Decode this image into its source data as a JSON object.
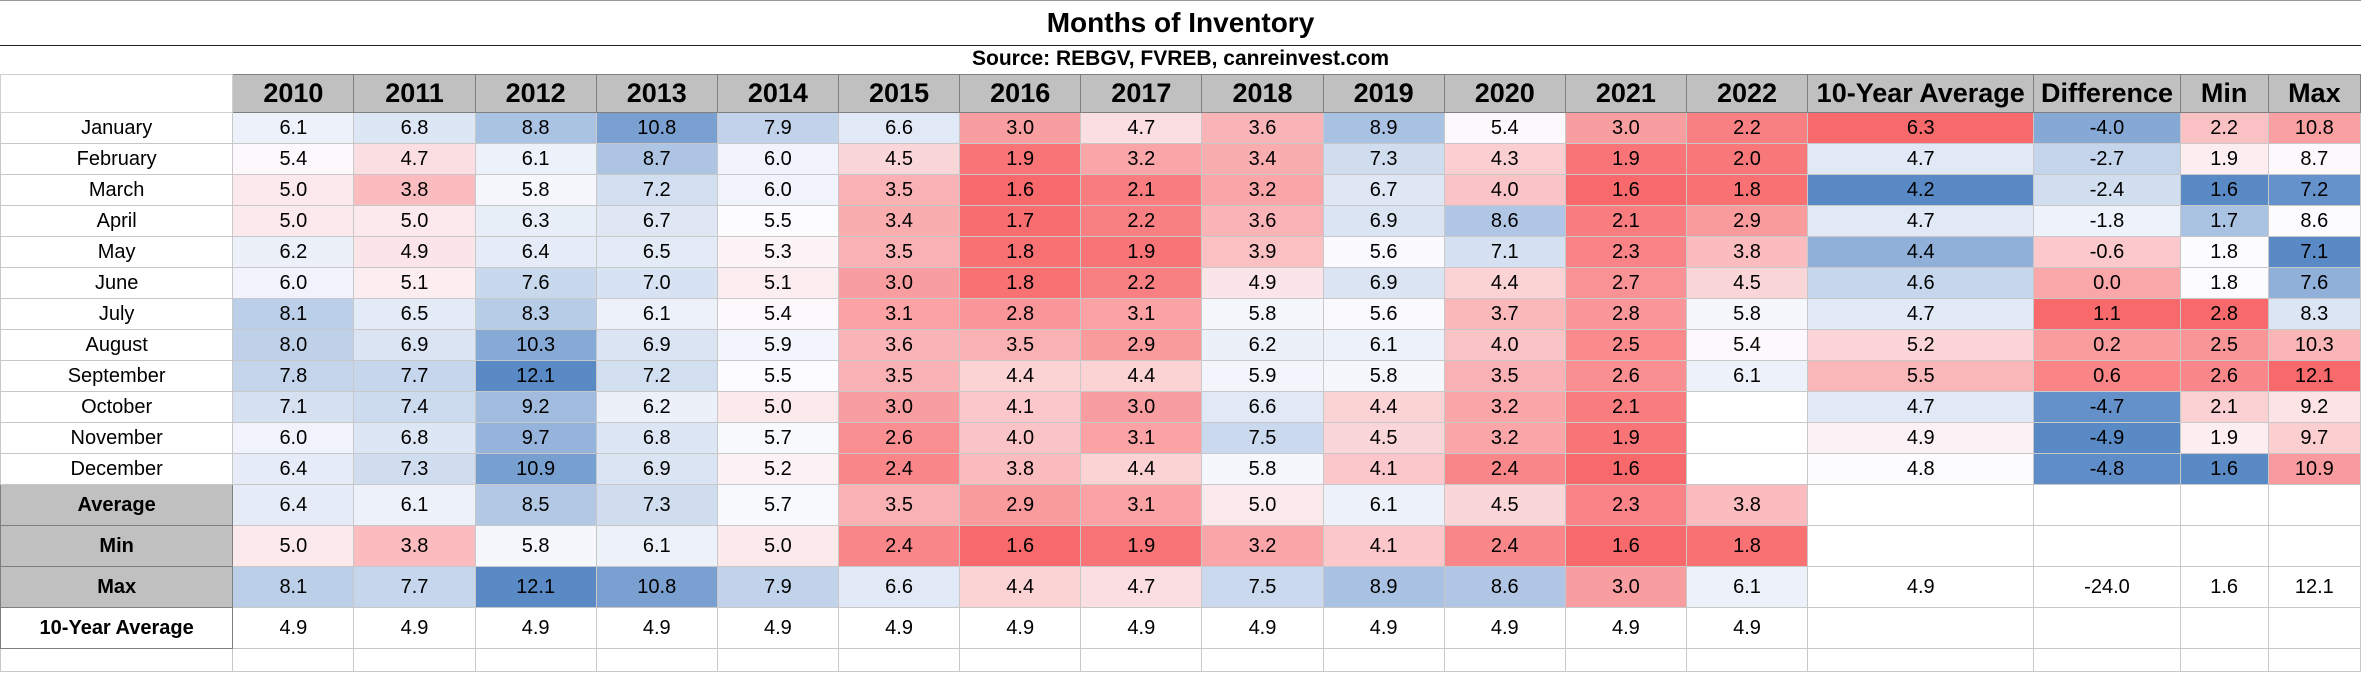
{
  "title": "Months of Inventory",
  "source": "Source: REBGV, FVREB, canreinvest.com",
  "chart_data": {
    "type": "table",
    "title": "Months of Inventory",
    "subtitle": "Source: REBGV, FVREB, canreinvest.com",
    "columns": [
      "2010",
      "2011",
      "2012",
      "2013",
      "2014",
      "2015",
      "2016",
      "2017",
      "2018",
      "2019",
      "2020",
      "2021",
      "2022",
      "10-Year Average",
      "Difference",
      "Min",
      "Max"
    ],
    "rows": [
      {
        "label": "January",
        "values": [
          "6.1",
          "6.8",
          "8.8",
          "10.8",
          "7.9",
          "6.6",
          "3.0",
          "4.7",
          "3.6",
          "8.9",
          "5.4",
          "3.0",
          "2.2",
          "6.3",
          "-4.0",
          "2.2",
          "10.8"
        ]
      },
      {
        "label": "February",
        "values": [
          "5.4",
          "4.7",
          "6.1",
          "8.7",
          "6.0",
          "4.5",
          "1.9",
          "3.2",
          "3.4",
          "7.3",
          "4.3",
          "1.9",
          "2.0",
          "4.7",
          "-2.7",
          "1.9",
          "8.7"
        ]
      },
      {
        "label": "March",
        "values": [
          "5.0",
          "3.8",
          "5.8",
          "7.2",
          "6.0",
          "3.5",
          "1.6",
          "2.1",
          "3.2",
          "6.7",
          "4.0",
          "1.6",
          "1.8",
          "4.2",
          "-2.4",
          "1.6",
          "7.2"
        ]
      },
      {
        "label": "April",
        "values": [
          "5.0",
          "5.0",
          "6.3",
          "6.7",
          "5.5",
          "3.4",
          "1.7",
          "2.2",
          "3.6",
          "6.9",
          "8.6",
          "2.1",
          "2.9",
          "4.7",
          "-1.8",
          "1.7",
          "8.6"
        ]
      },
      {
        "label": "May",
        "values": [
          "6.2",
          "4.9",
          "6.4",
          "6.5",
          "5.3",
          "3.5",
          "1.8",
          "1.9",
          "3.9",
          "5.6",
          "7.1",
          "2.3",
          "3.8",
          "4.4",
          "-0.6",
          "1.8",
          "7.1"
        ]
      },
      {
        "label": "June",
        "values": [
          "6.0",
          "5.1",
          "7.6",
          "7.0",
          "5.1",
          "3.0",
          "1.8",
          "2.2",
          "4.9",
          "6.9",
          "4.4",
          "2.7",
          "4.5",
          "4.6",
          "0.0",
          "1.8",
          "7.6"
        ]
      },
      {
        "label": "July",
        "values": [
          "8.1",
          "6.5",
          "8.3",
          "6.1",
          "5.4",
          "3.1",
          "2.8",
          "3.1",
          "5.8",
          "5.6",
          "3.7",
          "2.8",
          "5.8",
          "4.7",
          "1.1",
          "2.8",
          "8.3"
        ]
      },
      {
        "label": "August",
        "values": [
          "8.0",
          "6.9",
          "10.3",
          "6.9",
          "5.9",
          "3.6",
          "3.5",
          "2.9",
          "6.2",
          "6.1",
          "4.0",
          "2.5",
          "5.4",
          "5.2",
          "0.2",
          "2.5",
          "10.3"
        ]
      },
      {
        "label": "September",
        "values": [
          "7.8",
          "7.7",
          "12.1",
          "7.2",
          "5.5",
          "3.5",
          "4.4",
          "4.4",
          "5.9",
          "5.8",
          "3.5",
          "2.6",
          "6.1",
          "5.5",
          "0.6",
          "2.6",
          "12.1"
        ]
      },
      {
        "label": "October",
        "values": [
          "7.1",
          "7.4",
          "9.2",
          "6.2",
          "5.0",
          "3.0",
          "4.1",
          "3.0",
          "6.6",
          "4.4",
          "3.2",
          "2.1",
          "",
          "4.7",
          "-4.7",
          "2.1",
          "9.2"
        ]
      },
      {
        "label": "November",
        "values": [
          "6.0",
          "6.8",
          "9.7",
          "6.8",
          "5.7",
          "2.6",
          "4.0",
          "3.1",
          "7.5",
          "4.5",
          "3.2",
          "1.9",
          "",
          "4.9",
          "-4.9",
          "1.9",
          "9.7"
        ]
      },
      {
        "label": "December",
        "values": [
          "6.4",
          "7.3",
          "10.9",
          "6.9",
          "5.2",
          "2.4",
          "3.8",
          "4.4",
          "5.8",
          "4.1",
          "2.4",
          "1.6",
          "",
          "4.8",
          "-4.8",
          "1.6",
          "10.9"
        ]
      }
    ],
    "summary_rows": [
      {
        "label": "Average",
        "values": [
          "6.4",
          "6.1",
          "8.5",
          "7.3",
          "5.7",
          "3.5",
          "2.9",
          "3.1",
          "5.0",
          "6.1",
          "4.5",
          "2.3",
          "3.8",
          "",
          "",
          "",
          ""
        ]
      },
      {
        "label": "Min",
        "values": [
          "5.0",
          "3.8",
          "5.8",
          "6.1",
          "5.0",
          "2.4",
          "1.6",
          "1.9",
          "3.2",
          "4.1",
          "2.4",
          "1.6",
          "1.8",
          "",
          "",
          "",
          ""
        ]
      },
      {
        "label": "Max",
        "values": [
          "8.1",
          "7.7",
          "12.1",
          "10.8",
          "7.9",
          "6.6",
          "4.4",
          "4.7",
          "7.5",
          "8.9",
          "8.6",
          "3.0",
          "6.1",
          "4.9",
          "-24.0",
          "1.6",
          "12.1"
        ]
      },
      {
        "label": "10-Year Average",
        "values": [
          "4.9",
          "4.9",
          "4.9",
          "4.9",
          "4.9",
          "4.9",
          "4.9",
          "4.9",
          "4.9",
          "4.9",
          "4.9",
          "4.9",
          "4.9",
          "",
          "",
          "",
          ""
        ]
      }
    ],
    "heatmap_colors": {
      "low": "#f8696b",
      "mid": "#fcfcff",
      "high": "#5a8ac6"
    },
    "color_columns": {
      "year_scale": {
        "min": 1.6,
        "mid": 5.5,
        "max": 12.1
      },
      "ten_year_average": {
        "min": 4.2,
        "mid": 4.8,
        "max": 6.3,
        "direction": "reversed"
      },
      "difference": {
        "min": -4.9,
        "mid": -1.5,
        "max": 1.1,
        "direction": "reversed"
      },
      "min": {
        "min": 1.6,
        "mid": 1.8,
        "max": 2.8,
        "direction": "reversed"
      },
      "max": {
        "min": 7.1,
        "mid": 8.6,
        "max": 12.1,
        "direction": "reversed"
      }
    }
  }
}
